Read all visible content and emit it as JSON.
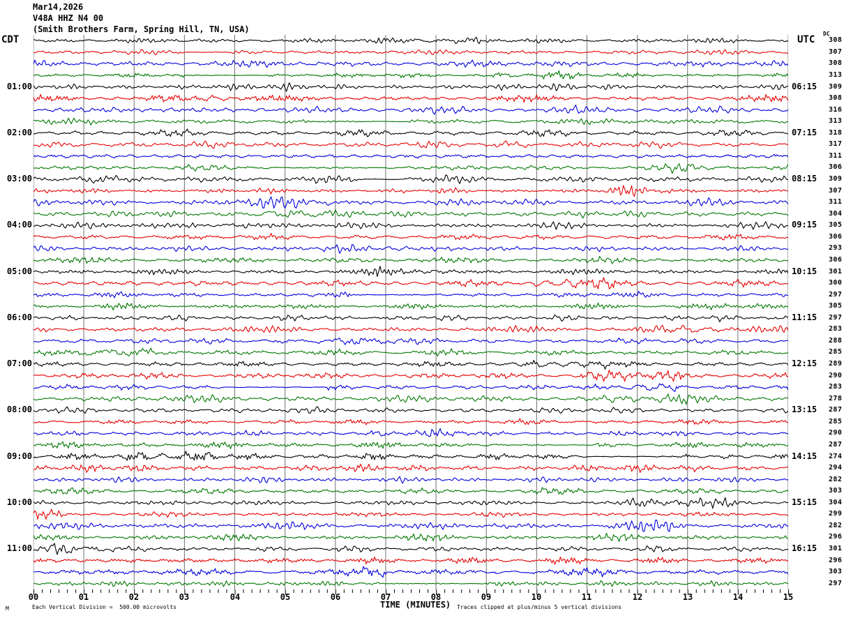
{
  "title": {
    "date": "Mar14,2026",
    "station": "V48A HHZ N4 00",
    "location": "(Smith Brothers Farm, Spring Hill, TN, USA)"
  },
  "left_axis": {
    "header": "CDT",
    "hour_labels": [
      "01:00",
      "02:00",
      "03:00",
      "04:00",
      "05:00",
      "06:00",
      "07:00",
      "08:00",
      "09:00",
      "10:00",
      "11:00"
    ]
  },
  "right_axis": {
    "header": "UTC",
    "dc_header": "DC",
    "hour_labels": [
      "06:15",
      "07:15",
      "08:15",
      "09:15",
      "10:15",
      "11:15",
      "12:15",
      "13:15",
      "14:15",
      "15:15",
      "16:15"
    ]
  },
  "x_axis": {
    "title": "TIME (MINUTES)",
    "tick_labels": [
      "00",
      "01",
      "02",
      "03",
      "04",
      "05",
      "06",
      "07",
      "08",
      "09",
      "10",
      "11",
      "12",
      "13",
      "14",
      "15"
    ]
  },
  "footer": {
    "mark": "M",
    "scale_note": "Each Vertical Division =  500.00 microvolts",
    "clip_note": "Traces clipped at plus/minus 5 vertical divisions"
  },
  "chart_data": {
    "type": "line",
    "subtype": "helicorder_seismogram",
    "title": "V48A HHZ N4 00 (Smith Brothers Farm, Spring Hill, TN, USA) Mar14,2026",
    "x_range_minutes": [
      0,
      15
    ],
    "minutes_per_row": 15,
    "rows_count": 48,
    "rows_per_hour": 4,
    "grid_minutes": 15,
    "minor_ticks_per_minute": 6,
    "trace_color_cycle": [
      "#000000",
      "#e60000",
      "#0000dd",
      "#007700"
    ],
    "grid_color": "#707070",
    "hour_label_row_indices": [
      4,
      8,
      12,
      16,
      20,
      24,
      28,
      32,
      36,
      40,
      44
    ],
    "left_hour_labels_cdt": [
      "01:00",
      "02:00",
      "03:00",
      "04:00",
      "05:00",
      "06:00",
      "07:00",
      "08:00",
      "09:00",
      "10:00",
      "11:00"
    ],
    "right_hour_labels_utc": [
      "06:15",
      "07:15",
      "08:15",
      "09:15",
      "10:15",
      "11:15",
      "12:15",
      "13:15",
      "14:15",
      "15:15",
      "16:15"
    ],
    "dc_values": [
      308,
      307,
      308,
      313,
      309,
      308,
      316,
      313,
      318,
      317,
      311,
      306,
      309,
      307,
      311,
      304,
      305,
      306,
      293,
      306,
      301,
      300,
      297,
      305,
      297,
      283,
      288,
      285,
      289,
      290,
      283,
      278,
      287,
      285,
      290,
      287,
      274,
      294,
      282,
      303,
      304,
      299,
      282,
      296,
      301,
      296,
      303,
      297
    ],
    "amplitude_clip_divisions": 5,
    "microvolts_per_division": 500.0
  }
}
